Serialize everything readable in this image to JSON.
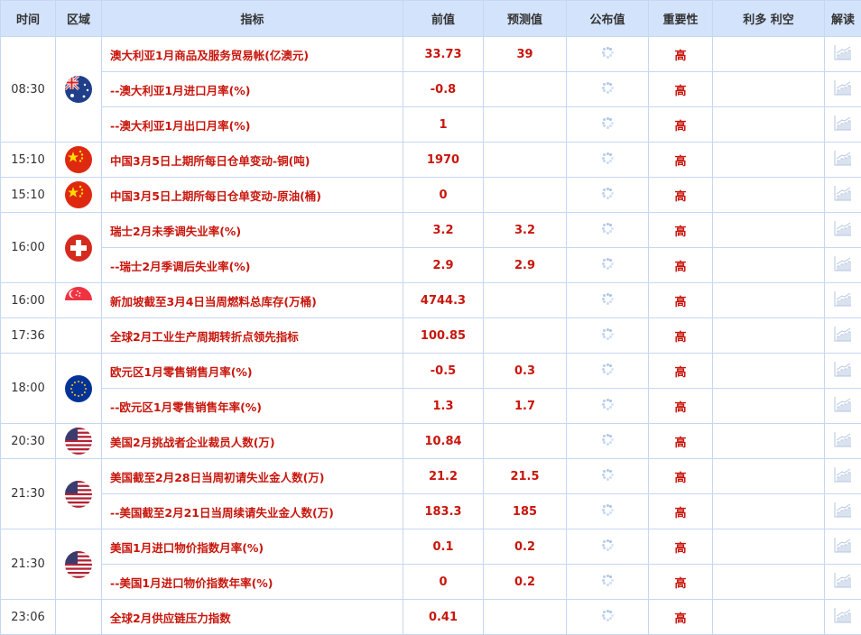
{
  "headers": [
    "时间",
    "区域",
    "指标",
    "前值",
    "预测值",
    "公布值",
    "重要性",
    "利多 利空",
    "解读"
  ],
  "groups": [
    {
      "time": "08:30",
      "flag": "australia",
      "rows": [
        {
          "indicator": "澳大利亚1月商品及服务贸易帐(亿澳元)",
          "prev": "33.73",
          "forecast": "39",
          "importance": "高"
        },
        {
          "indicator": "--澳大利亚1月进口月率(%)",
          "prev": "-0.8",
          "forecast": "",
          "importance": "高"
        },
        {
          "indicator": "--澳大利亚1月出口月率(%)",
          "prev": "1",
          "forecast": "",
          "importance": "高"
        }
      ]
    },
    {
      "time": "15:10",
      "flag": "china",
      "rows": [
        {
          "indicator": "中国3月5日上期所每日仓单变动-铜(吨)",
          "prev": "1970",
          "forecast": "",
          "importance": "高"
        }
      ]
    },
    {
      "time": "15:10",
      "flag": "china",
      "rows": [
        {
          "indicator": "中国3月5日上期所每日仓单变动-原油(桶)",
          "prev": "0",
          "forecast": "",
          "importance": "高"
        }
      ]
    },
    {
      "time": "16:00",
      "flag": "switzerland",
      "rows": [
        {
          "indicator": "瑞士2月未季调失业率(%)",
          "prev": "3.2",
          "forecast": "3.2",
          "importance": "高"
        },
        {
          "indicator": "--瑞士2月季调后失业率(%)",
          "prev": "2.9",
          "forecast": "2.9",
          "importance": "高"
        }
      ]
    },
    {
      "time": "16:00",
      "flag": "singapore",
      "rows": [
        {
          "indicator": "新加坡截至3月4日当周燃料总库存(万桶)",
          "prev": "4744.3",
          "forecast": "",
          "importance": "高"
        }
      ]
    },
    {
      "time": "17:36",
      "flag": "",
      "rows": [
        {
          "indicator": "全球2月工业生产周期转折点领先指标",
          "prev": "100.85",
          "forecast": "",
          "importance": "高"
        }
      ]
    },
    {
      "time": "18:00",
      "flag": "eu",
      "rows": [
        {
          "indicator": "欧元区1月零售销售月率(%)",
          "prev": "-0.5",
          "forecast": "0.3",
          "importance": "高"
        },
        {
          "indicator": "--欧元区1月零售销售年率(%)",
          "prev": "1.3",
          "forecast": "1.7",
          "importance": "高"
        }
      ]
    },
    {
      "time": "20:30",
      "flag": "usa",
      "rows": [
        {
          "indicator": "美国2月挑战者企业裁员人数(万)",
          "prev": "10.84",
          "forecast": "",
          "importance": "高"
        }
      ]
    },
    {
      "time": "21:30",
      "flag": "usa",
      "rows": [
        {
          "indicator": "美国截至2月28日当周初请失业金人数(万)",
          "prev": "21.2",
          "forecast": "21.5",
          "importance": "高"
        },
        {
          "indicator": "--美国截至2月21日当周续请失业金人数(万)",
          "prev": "183.3",
          "forecast": "185",
          "importance": "高"
        }
      ]
    },
    {
      "time": "21:30",
      "flag": "usa",
      "rows": [
        {
          "indicator": "美国1月进口物价指数月率(%)",
          "prev": "0.1",
          "forecast": "0.2",
          "importance": "高"
        },
        {
          "indicator": "--美国1月进口物价指数年率(%)",
          "prev": "0",
          "forecast": "0.2",
          "importance": "高"
        }
      ]
    },
    {
      "time": "23:06",
      "flag": "",
      "rows": [
        {
          "indicator": "全球2月供应链压力指数",
          "prev": "0.41",
          "forecast": "",
          "importance": "高"
        }
      ]
    }
  ],
  "colors": {
    "header_bg": "#d3e3fb",
    "border": "#c5d7f2",
    "accent_red": "#c8160c"
  }
}
